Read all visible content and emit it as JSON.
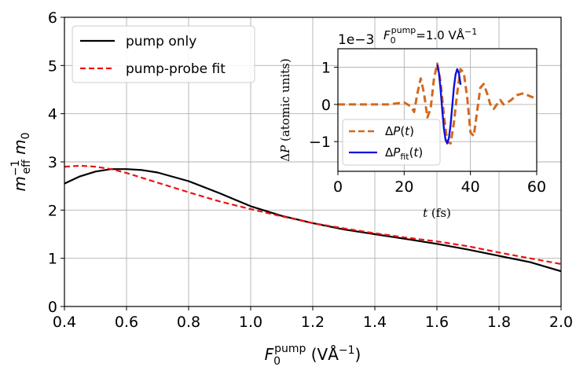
{
  "chart_data": [
    {
      "type": "line",
      "xlabel": "F0pump (VÅ−1)",
      "ylabel": "m_eff^−1 m0",
      "xlim": [
        0.4,
        2.0
      ],
      "ylim": [
        0,
        6
      ],
      "xticks": [
        "0.4",
        "0.6",
        "0.8",
        "1.0",
        "1.2",
        "1.4",
        "1.6",
        "1.8",
        "2.0"
      ],
      "yticks": [
        "0",
        "1",
        "2",
        "3",
        "4",
        "5",
        "6"
      ],
      "grid": true,
      "legend_position": "top-left",
      "series": [
        {
          "name": "pump only",
          "color": "#000000",
          "style": "solid",
          "x": [
            0.4,
            0.45,
            0.5,
            0.55,
            0.6,
            0.65,
            0.7,
            0.8,
            0.9,
            1.0,
            1.1,
            1.2,
            1.3,
            1.4,
            1.5,
            1.6,
            1.7,
            1.8,
            1.9,
            2.0
          ],
          "y": [
            2.55,
            2.7,
            2.8,
            2.85,
            2.85,
            2.83,
            2.78,
            2.6,
            2.35,
            2.08,
            1.88,
            1.73,
            1.6,
            1.5,
            1.4,
            1.3,
            1.18,
            1.05,
            0.92,
            0.73
          ]
        },
        {
          "name": "pump-probe fit",
          "color": "#ee1111",
          "style": "dashed",
          "x": [
            0.4,
            0.45,
            0.5,
            0.55,
            0.6,
            0.7,
            0.8,
            0.9,
            1.0,
            1.1,
            1.2,
            1.3,
            1.4,
            1.5,
            1.6,
            1.7,
            1.8,
            1.9,
            2.0
          ],
          "y": [
            2.9,
            2.92,
            2.9,
            2.85,
            2.77,
            2.57,
            2.37,
            2.18,
            2.02,
            1.87,
            1.73,
            1.62,
            1.52,
            1.43,
            1.35,
            1.25,
            1.12,
            1.0,
            0.88
          ]
        }
      ]
    },
    {
      "type": "line",
      "title": "F0pump=1.0 VÅ−1",
      "offset_text": "1e−3",
      "xlabel": "t (fs)",
      "ylabel": "ΔP (atomic units)",
      "xlim": [
        0,
        60
      ],
      "ylim": [
        -1.8,
        1.5
      ],
      "xticks": [
        "0",
        "20",
        "40",
        "60"
      ],
      "yticks": [
        "−1",
        "0",
        "1"
      ],
      "grid": true,
      "legend_position": "bottom-left",
      "series": [
        {
          "name": "ΔP(t)",
          "color": "#d2691e",
          "style": "dashed",
          "x": [
            0,
            10,
            15,
            18,
            20,
            22,
            23,
            24,
            25,
            26,
            27,
            28,
            29,
            30,
            31,
            32,
            33,
            34,
            35,
            36,
            37,
            38,
            39,
            40,
            41,
            42,
            43,
            44,
            45,
            46,
            47,
            48,
            49,
            50,
            52,
            54,
            56,
            58,
            60
          ],
          "y": [
            0,
            0,
            0,
            0.03,
            0.05,
            -0.05,
            -0.2,
            0.3,
            0.7,
            0.3,
            -0.35,
            -0.1,
            0.7,
            1.1,
            0.6,
            -0.3,
            -1.0,
            -1.05,
            -0.5,
            0.3,
            0.95,
            0.85,
            0.2,
            -0.75,
            -0.85,
            -0.2,
            0.45,
            0.55,
            0.3,
            0.0,
            -0.12,
            0.0,
            0.12,
            0.0,
            0.1,
            0.25,
            0.3,
            0.22,
            0.15
          ]
        },
        {
          "name": "ΔPfit(t)",
          "color": "#1010dd",
          "style": "solid",
          "x": [
            30,
            30.5,
            31,
            31.5,
            32,
            32.5,
            33,
            33.5,
            34,
            34.5,
            35,
            35.5,
            36,
            36.5,
            37
          ],
          "y": [
            1.05,
            0.85,
            0.4,
            -0.15,
            -0.65,
            -0.95,
            -1.05,
            -0.9,
            -0.55,
            -0.05,
            0.45,
            0.8,
            0.95,
            0.85,
            0.55
          ]
        }
      ]
    }
  ],
  "legend": {
    "main": [
      "pump only",
      "pump-probe fit"
    ],
    "inset": [
      "ΔP(t)",
      "ΔPfit(t)"
    ]
  }
}
